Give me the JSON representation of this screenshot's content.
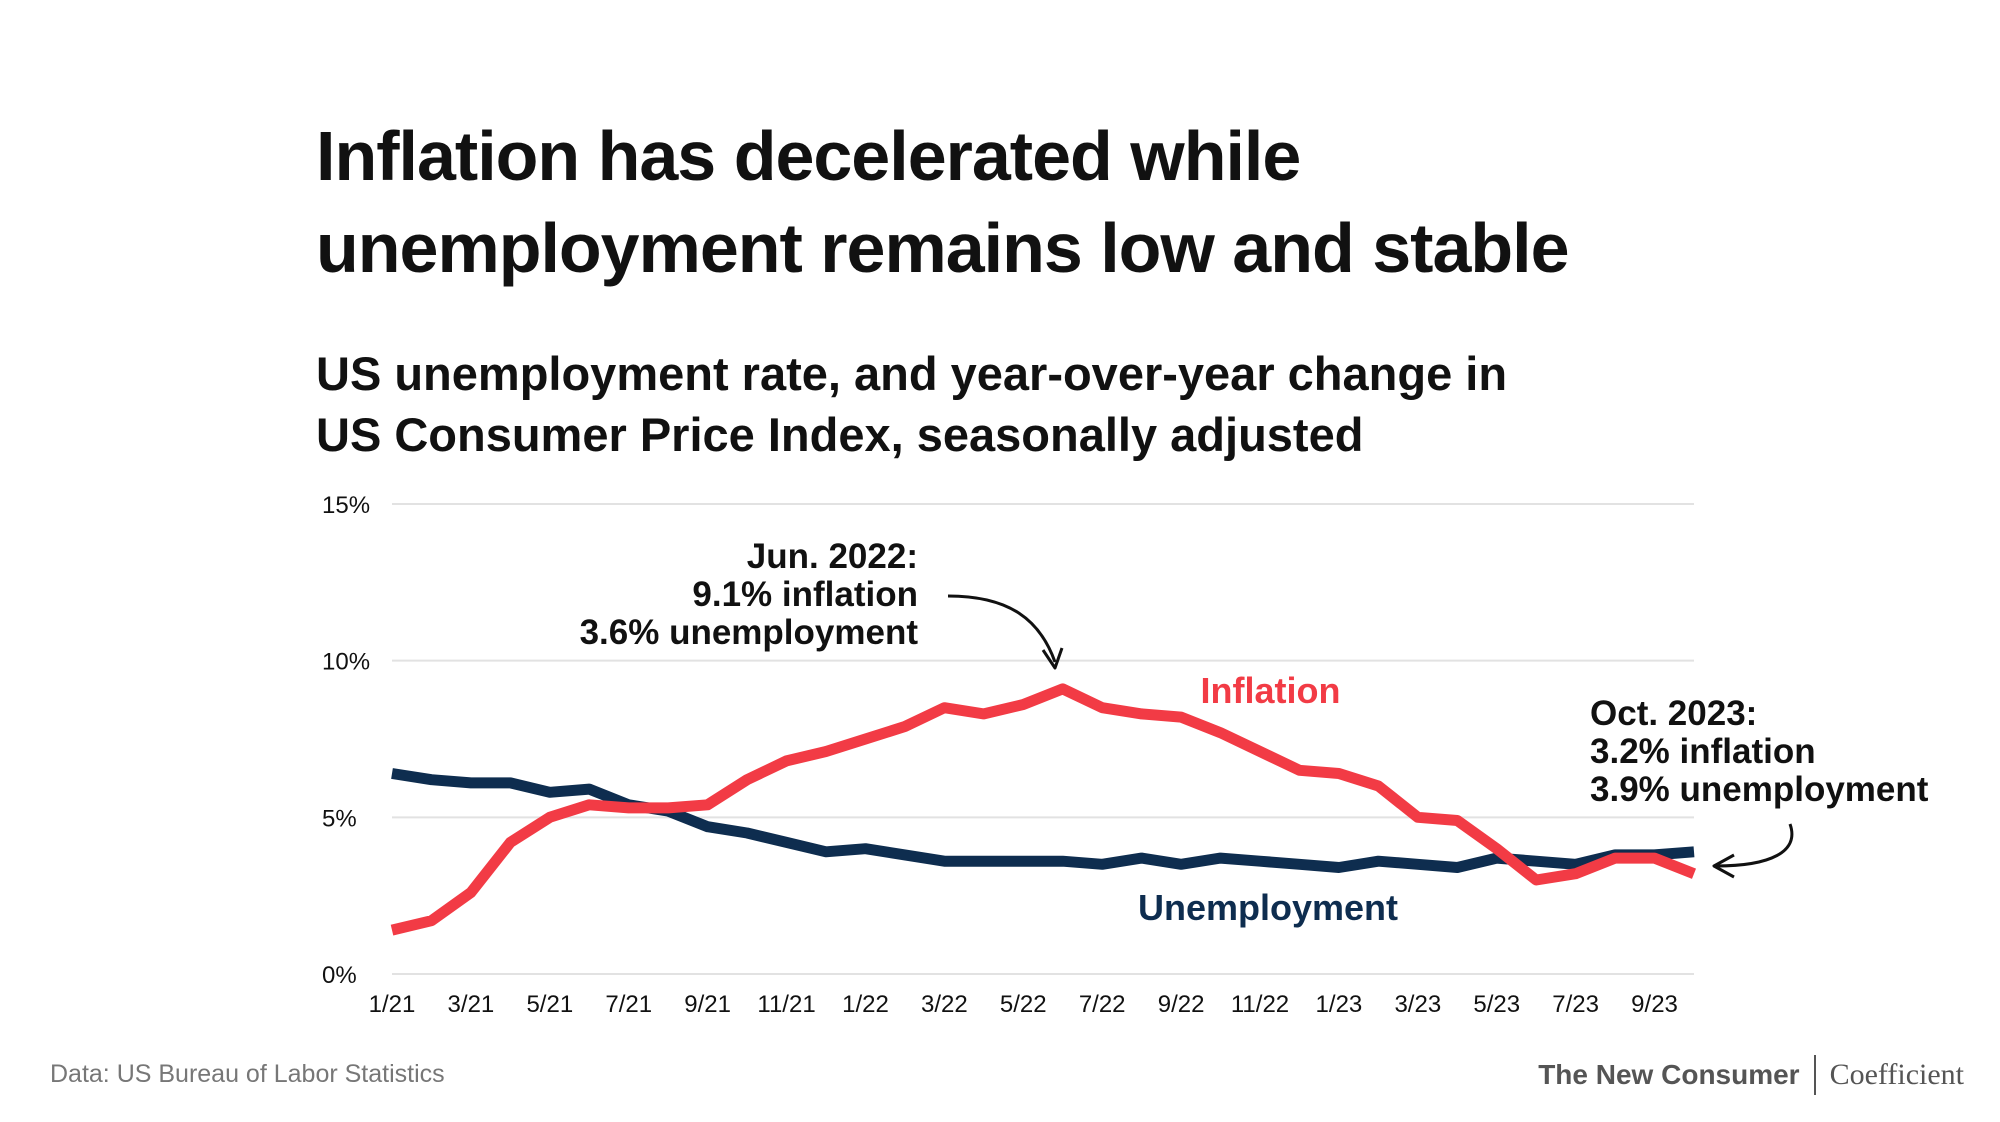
{
  "title": {
    "line1": "Inflation has decelerated while",
    "line2": "unemployment remains low and stable"
  },
  "subtitle": {
    "line1": "US unemployment rate, and year-over-year change in",
    "line2": "US Consumer Price Index, seasonally adjusted"
  },
  "footer": {
    "source": "Data: US Bureau of Labor Statistics",
    "brand_primary": "The New Consumer",
    "brand_secondary": "Coefficient"
  },
  "colors": {
    "inflation": "#f23b45",
    "unemployment": "#0e2d4f",
    "grid": "#e2e2e2",
    "text": "#111111"
  },
  "chart_data": {
    "type": "line",
    "ylim": [
      0,
      15
    ],
    "yticks": [
      0,
      5,
      10,
      15
    ],
    "ytick_labels": [
      "0%",
      "5%",
      "10%",
      "15%"
    ],
    "x": [
      "1/21",
      "2/21",
      "3/21",
      "4/21",
      "5/21",
      "6/21",
      "7/21",
      "8/21",
      "9/21",
      "10/21",
      "11/21",
      "12/21",
      "1/22",
      "2/22",
      "3/22",
      "4/22",
      "5/22",
      "6/22",
      "7/22",
      "8/22",
      "9/22",
      "10/22",
      "11/22",
      "12/22",
      "1/23",
      "2/23",
      "3/23",
      "4/23",
      "5/23",
      "6/23",
      "7/23",
      "8/23",
      "9/23",
      "10/23"
    ],
    "xtick_labels": [
      "1/21",
      "3/21",
      "5/21",
      "7/21",
      "9/21",
      "11/21",
      "1/22",
      "3/22",
      "5/22",
      "7/22",
      "9/22",
      "11/22",
      "1/23",
      "3/23",
      "5/23",
      "7/23",
      "9/23"
    ],
    "series": [
      {
        "name": "Inflation",
        "label": "Inflation",
        "values": [
          1.4,
          1.7,
          2.6,
          4.2,
          5.0,
          5.4,
          5.3,
          5.3,
          5.4,
          6.2,
          6.8,
          7.1,
          7.5,
          7.9,
          8.5,
          8.3,
          8.6,
          9.1,
          8.5,
          8.3,
          8.2,
          7.7,
          7.1,
          6.5,
          6.4,
          6.0,
          5.0,
          4.9,
          4.0,
          3.0,
          3.2,
          3.7,
          3.7,
          3.2
        ]
      },
      {
        "name": "Unemployment",
        "label": "Unemployment",
        "values": [
          6.4,
          6.2,
          6.1,
          6.1,
          5.8,
          5.9,
          5.4,
          5.2,
          4.7,
          4.5,
          4.2,
          3.9,
          4.0,
          3.8,
          3.6,
          3.6,
          3.6,
          3.6,
          3.5,
          3.7,
          3.5,
          3.7,
          3.6,
          3.5,
          3.4,
          3.6,
          3.5,
          3.4,
          3.7,
          3.6,
          3.5,
          3.8,
          3.8,
          3.9
        ]
      }
    ],
    "annotations": [
      {
        "lines": [
          "Jun. 2022:",
          "9.1% inflation",
          "3.6% unemployment"
        ]
      },
      {
        "lines": [
          "Oct. 2023:",
          "3.2% inflation",
          "3.9% unemployment"
        ]
      }
    ]
  }
}
